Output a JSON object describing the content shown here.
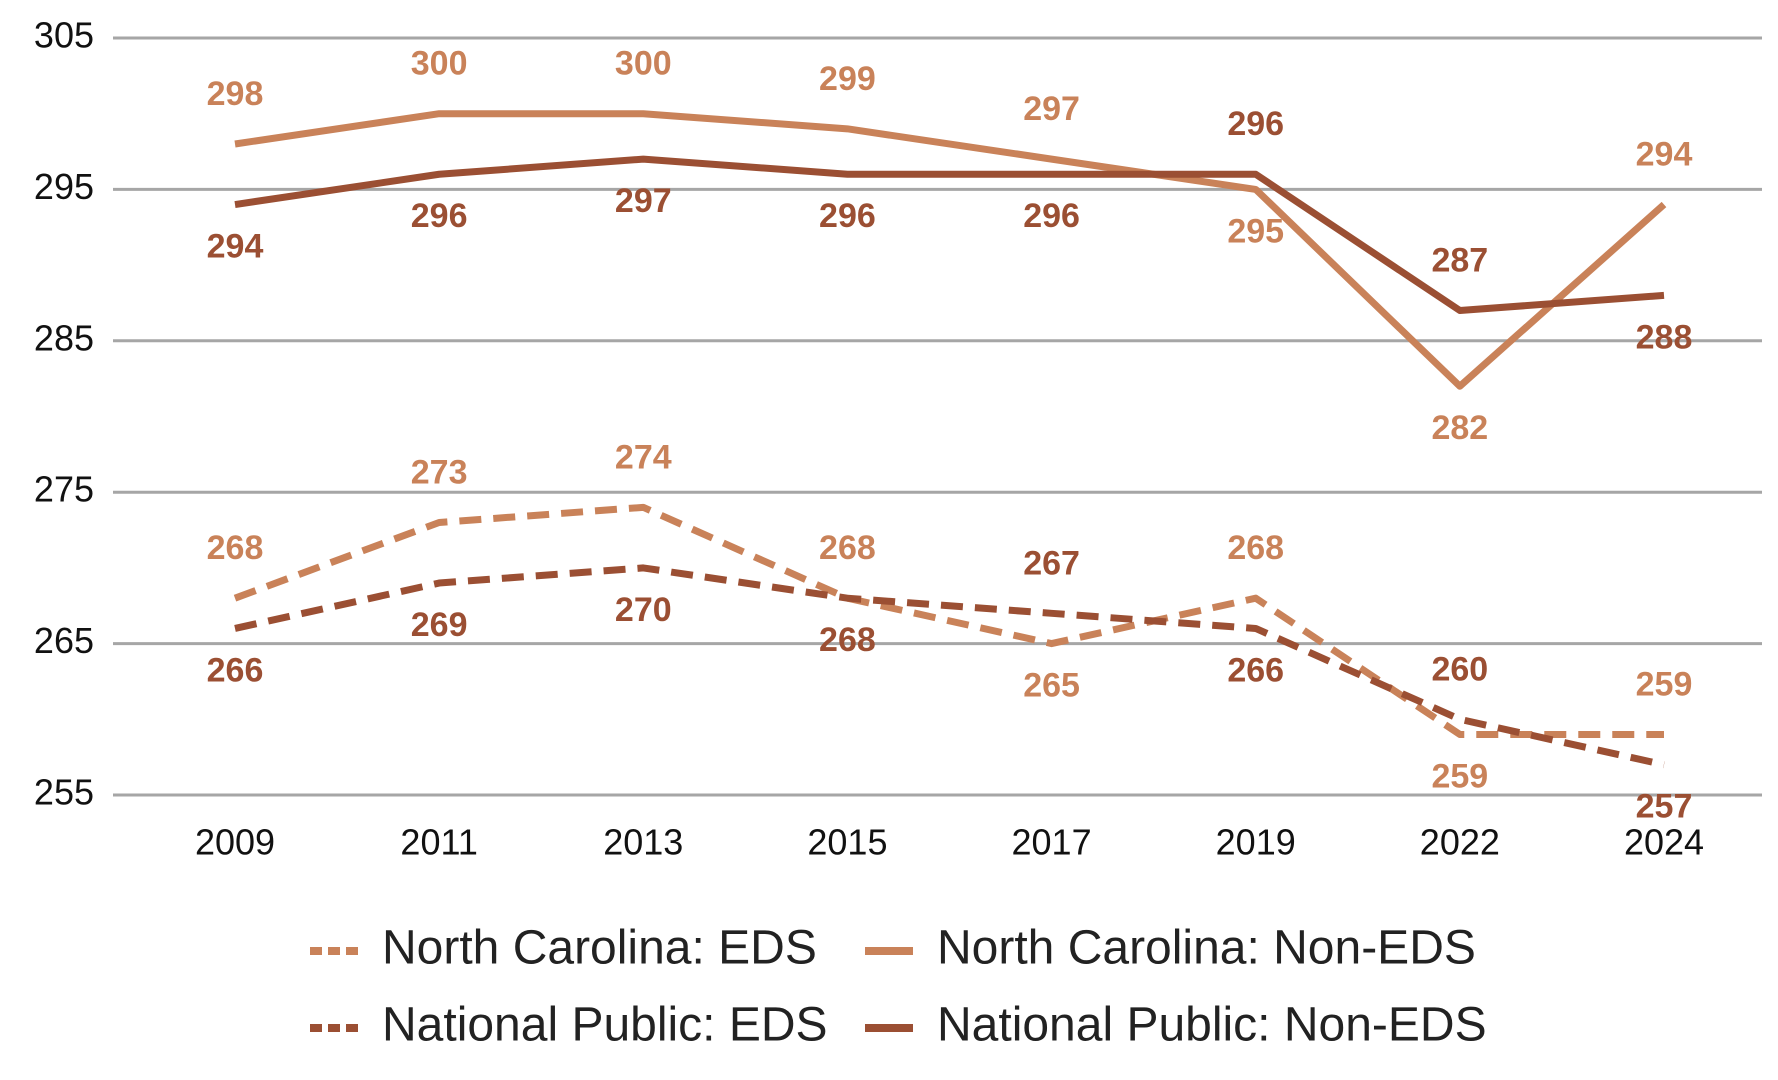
{
  "chart_data": {
    "type": "line",
    "categories": [
      "2009",
      "2011",
      "2013",
      "2015",
      "2017",
      "2019",
      "2022",
      "2024"
    ],
    "series": [
      {
        "name": "North Carolina: EDS",
        "color": "#c98259",
        "dashed": true,
        "values": [
          268,
          273,
          274,
          268,
          265,
          268,
          259,
          259
        ]
      },
      {
        "name": "North Carolina: Non-EDS",
        "color": "#c98259",
        "dashed": false,
        "values": [
          298,
          300,
          300,
          299,
          297,
          295,
          282,
          294
        ]
      },
      {
        "name": "National Public: EDS",
        "color": "#9b4f33",
        "dashed": true,
        "values": [
          266,
          269,
          270,
          268,
          267,
          266,
          260,
          257
        ]
      },
      {
        "name": "National Public: Non-EDS",
        "color": "#9b4f33",
        "dashed": false,
        "values": [
          294,
          296,
          297,
          296,
          296,
          296,
          287,
          288
        ]
      }
    ],
    "ylim": [
      255,
      305
    ],
    "yticks": [
      255,
      265,
      275,
      285,
      295,
      305
    ],
    "grid": true,
    "legend": "bottom"
  }
}
